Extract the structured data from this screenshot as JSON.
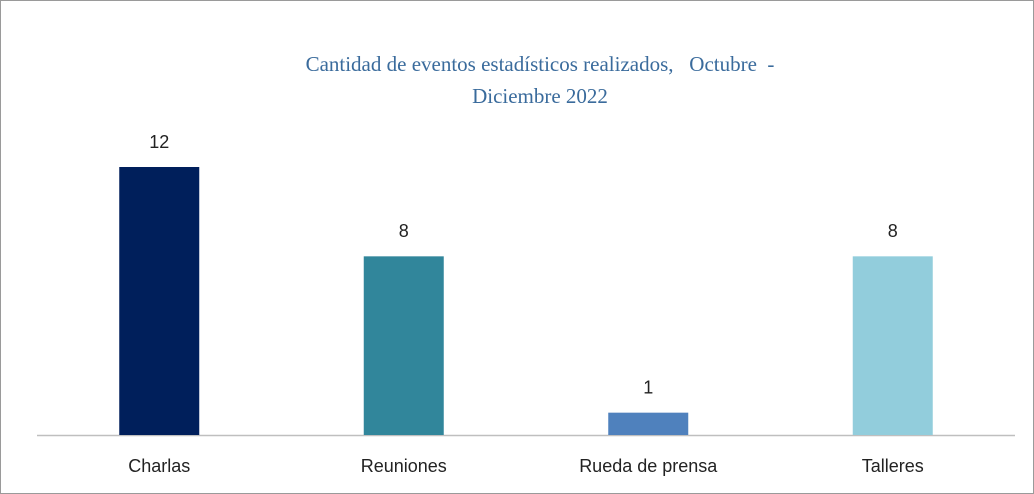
{
  "chart_data": {
    "type": "bar",
    "title": "Cantidad de eventos estadísticos realizados,   Octubre  - Diciembre 2022",
    "categories": [
      "Charlas",
      "Reuniones",
      "Rueda de prensa",
      "Talleres"
    ],
    "values": [
      12,
      8,
      1,
      8
    ],
    "colors": [
      "#001f5b",
      "#31869b",
      "#4f81bd",
      "#92cddc"
    ]
  }
}
